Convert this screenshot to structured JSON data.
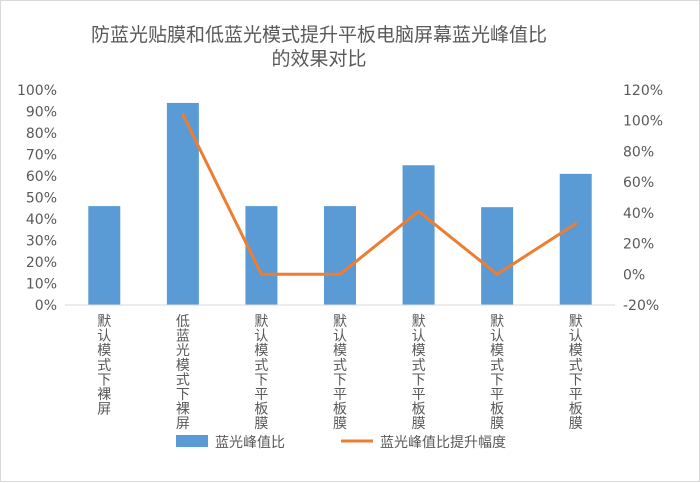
{
  "chart_data": {
    "type": "bar",
    "title": "防蓝光贴膜和低蓝光模式提升平板电脑屏幕蓝光峰值比的效果对比",
    "title_lines": [
      "防蓝光贴膜和低蓝光模式提升平板电脑屏幕蓝光峰值比",
      "的效果对比"
    ],
    "categories": [
      "默认模式下裸屏",
      "低蓝光模式下裸屏",
      "默认模式下平板膜",
      "默认模式下平板膜",
      "默认模式下平板膜",
      "默认模式下平板膜",
      "默认模式下平板膜"
    ],
    "series": [
      {
        "name": "蓝光峰值比",
        "kind": "bar",
        "axis": "left",
        "color": "#5b9bd5",
        "values": [
          46,
          94,
          46,
          46,
          65,
          45.5,
          61
        ]
      },
      {
        "name": "蓝光峰值比提升幅度",
        "kind": "line",
        "axis": "right",
        "color": "#ed7d31",
        "values": [
          null,
          104,
          0,
          0,
          41,
          0,
          33
        ]
      }
    ],
    "y_left": {
      "min": 0,
      "max": 100,
      "step": 10,
      "ticks": [
        "0%",
        "10%",
        "20%",
        "30%",
        "40%",
        "50%",
        "60%",
        "70%",
        "80%",
        "90%",
        "100%"
      ]
    },
    "y_right": {
      "min": -20,
      "max": 120,
      "step": 20,
      "ticks": [
        "-20%",
        "0%",
        "20%",
        "40%",
        "60%",
        "80%",
        "100%",
        "120%"
      ]
    },
    "grid": false,
    "legend_position": "bottom",
    "legend": [
      {
        "label": "蓝光峰值比",
        "swatch": "bar",
        "color": "#5b9bd5"
      },
      {
        "label": "蓝光峰值比提升幅度",
        "swatch": "line",
        "color": "#ed7d31"
      }
    ]
  }
}
